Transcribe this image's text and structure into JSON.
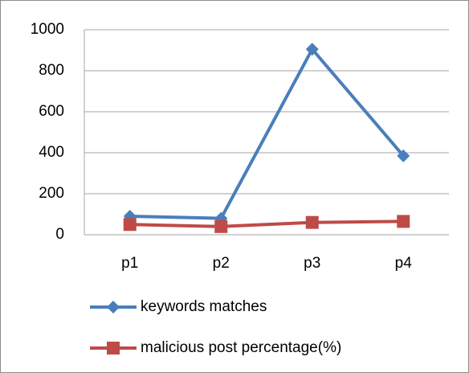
{
  "chart_data": {
    "type": "line",
    "categories": [
      "p1",
      "p2",
      "p3",
      "p4"
    ],
    "series": [
      {
        "name": "keywords matches",
        "color": "#4a7ebb",
        "marker": "diamond",
        "values": [
          90,
          80,
          905,
          385
        ]
      },
      {
        "name": "malicious post percentage(%)",
        "color": "#be4b48",
        "marker": "square",
        "values": [
          50,
          40,
          60,
          65
        ]
      }
    ],
    "ylim": [
      0,
      1000
    ],
    "yticks": [
      0,
      200,
      400,
      600,
      800,
      1000
    ],
    "grid": true,
    "legend": "bottom"
  }
}
